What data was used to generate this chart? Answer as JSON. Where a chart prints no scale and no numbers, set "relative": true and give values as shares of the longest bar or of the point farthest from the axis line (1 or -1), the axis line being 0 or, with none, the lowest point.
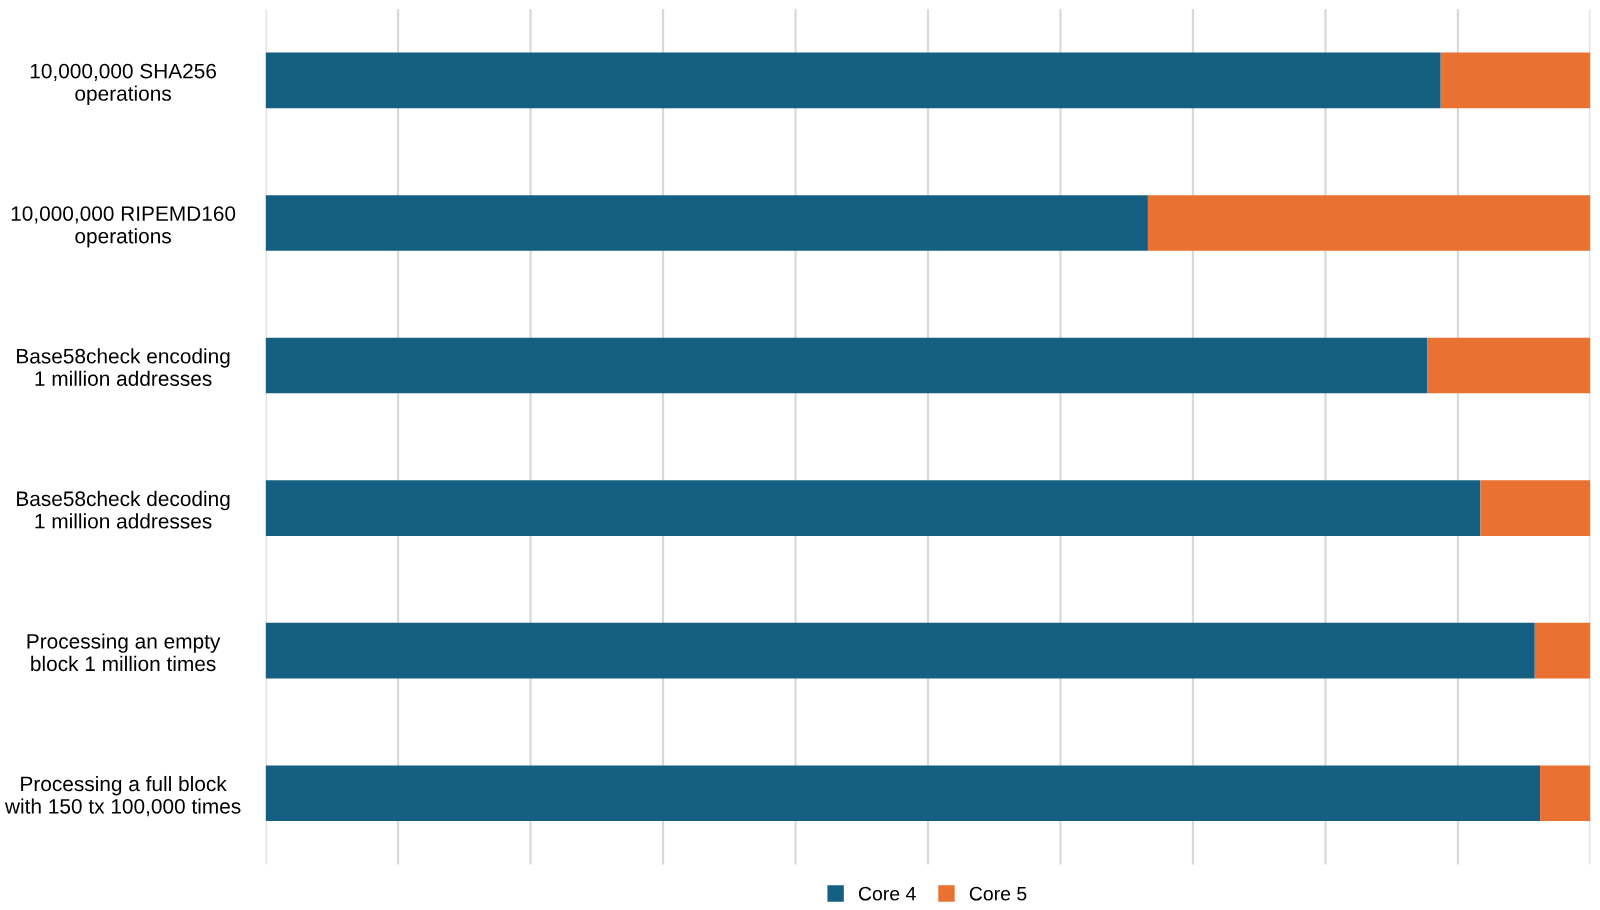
{
  "chart_data": {
    "type": "bar",
    "orientation": "horizontal",
    "stacked": true,
    "relative": true,
    "grid": "x",
    "legend": "bottom",
    "categories": [
      "10,000,000 SHA256\noperations",
      "10,000,000 RIPEMD160\noperations",
      "Base58check encoding\n1 million addresses",
      "Base58check decoding\n1 million addresses",
      "Processing an empty\nblock 1 million times",
      "Processing a full block\nwith 150 tx 100,000 times"
    ],
    "series": [
      {
        "name": "Core 4",
        "color": "#156082",
        "values": [
          0.887,
          0.666,
          0.877,
          0.917,
          0.958,
          0.962
        ]
      },
      {
        "name": "Core 5",
        "color": "#e97132",
        "values": [
          0.113,
          0.334,
          0.123,
          0.083,
          0.042,
          0.038
        ]
      }
    ]
  }
}
